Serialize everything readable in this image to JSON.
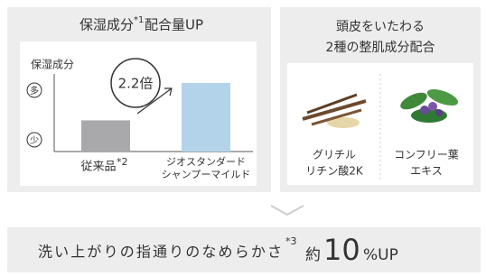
{
  "left_panel": {
    "title": "保湿成分",
    "title_note": "*1",
    "title_rest": "配合量UP",
    "chart_data": {
      "type": "bar",
      "y_label": "保湿成分",
      "y_high": "多",
      "y_low": "少",
      "categories": [
        [
          "従来品"
        ],
        [
          "ジオスタンダード",
          "シャンプーマイルド"
        ]
      ],
      "category_note": "*2",
      "values": [
        1,
        2.2
      ],
      "colors": [
        "#a9a9ab",
        "#b3d3ea"
      ],
      "ylim": [
        0,
        2.4
      ],
      "callout": "2.2倍"
    }
  },
  "right_panel": {
    "title_lines": [
      "頭皮をいたわる",
      "2種の整肌成分配合"
    ],
    "items": [
      [
        "グリチル",
        "リチン酸2K"
      ],
      [
        "コンフリー葉",
        "エキス"
      ]
    ]
  },
  "bottom": {
    "text": "洗い上がりの指通りのなめらかさ",
    "note": "*3",
    "prefix": "約",
    "number": "10",
    "suffix": "%UP"
  }
}
